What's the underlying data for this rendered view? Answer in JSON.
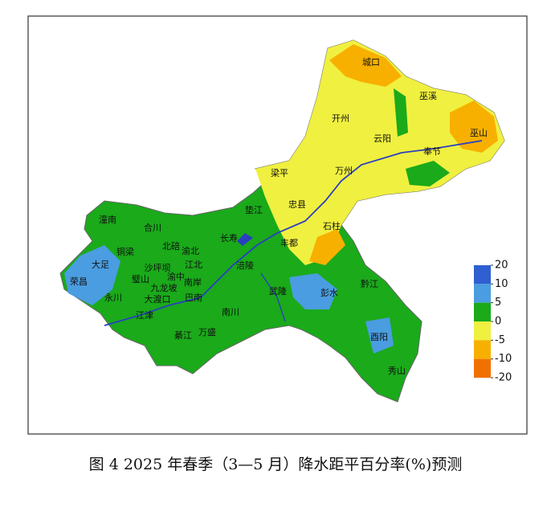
{
  "map": {
    "labels": [
      "城口",
      "巫溪",
      "巫山",
      "开州",
      "云阳",
      "奉节",
      "万州",
      "梁平",
      "忠县",
      "石柱",
      "垫江",
      "长寿",
      "丰都",
      "潼南",
      "合川",
      "北碚",
      "渝北",
      "大足",
      "铜梁",
      "沙坪坝",
      "江北",
      "璧山",
      "渝中",
      "荣昌",
      "九龙坡",
      "南岸",
      "涪陵",
      "永川",
      "大渡口",
      "巴南",
      "武隆",
      "彭水",
      "黔江",
      "江津",
      "南川",
      "綦江",
      "万盛",
      "酉阳",
      "秀山"
    ],
    "legend": {
      "ticks": [
        20,
        10,
        5,
        0,
        -5,
        -10,
        -20
      ],
      "colors": [
        "#2f5fd0",
        "#4a9de0",
        "#1aaa1a",
        "#f0f040",
        "#f8b000",
        "#f07000"
      ]
    }
  },
  "caption": "图 4   2025 年春季（3—5 月）降水距平百分率(%)预测"
}
